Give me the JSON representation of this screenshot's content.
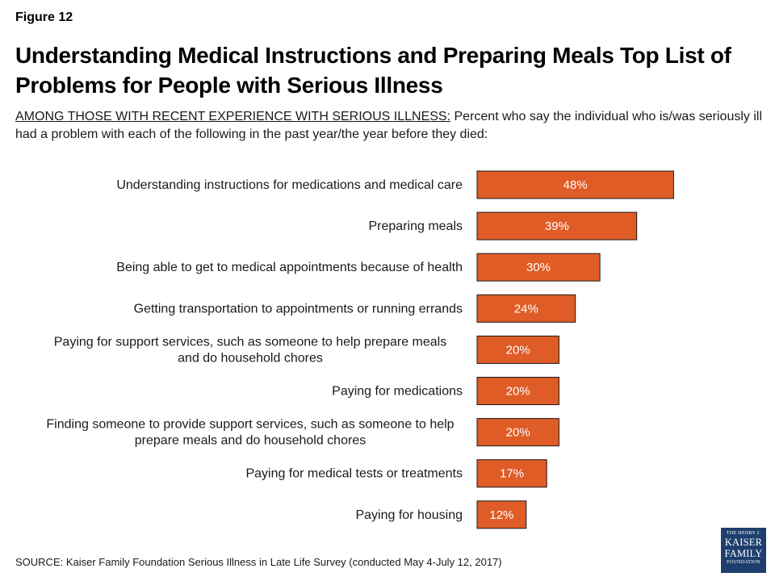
{
  "figure_label": "Figure 12",
  "title": "Understanding Medical Instructions and Preparing Meals Top List of Problems for People with Serious Illness",
  "subtitle_lead": "AMONG THOSE WITH RECENT EXPERIENCE WITH SERIOUS ILLNESS:",
  "subtitle_rest": " Percent who say the individual who is/was seriously ill had a problem with each of the following in the past year/the year before they died:",
  "source": "SOURCE: Kaiser Family Foundation Serious Illness in Late Life Survey (conducted May 4-July 12, 2017)",
  "logo": {
    "line1": "THE HENRY J.",
    "line2": "KAISER",
    "line3": "FAMILY",
    "line4": "FOUNDATION"
  },
  "colors": {
    "bar": "#e05c27",
    "bar_border": "#1a1a1a",
    "logo_bg": "#1e3f6e"
  },
  "chart_data": {
    "type": "bar",
    "orientation": "horizontal",
    "categories": [
      "Understanding instructions for medications and medical care",
      "Preparing meals",
      "Being able to get to medical appointments because of health",
      "Getting transportation to appointments or running errands",
      "Paying for support services, such as someone to help prepare meals and do household chores",
      "Paying for medications",
      "Finding someone to provide support services, such as someone to help prepare meals and do household chores",
      "Paying for medical tests or treatments",
      "Paying for housing"
    ],
    "category_lines": [
      [
        "Understanding instructions for medications and medical care"
      ],
      [
        "Preparing meals"
      ],
      [
        "Being able to get to medical appointments because of health"
      ],
      [
        "Getting transportation to appointments or running errands"
      ],
      [
        "Paying for support services, such as someone to help prepare meals",
        "and do household chores"
      ],
      [
        "Paying for medications"
      ],
      [
        "Finding someone to provide support services, such as someone to help",
        "prepare meals and do household chores"
      ],
      [
        "Paying for medical tests or treatments"
      ],
      [
        "Paying for housing"
      ]
    ],
    "values": [
      48,
      39,
      30,
      24,
      20,
      20,
      20,
      17,
      12
    ],
    "data_labels": [
      "48%",
      "39%",
      "30%",
      "24%",
      "20%",
      "20%",
      "20%",
      "17%",
      "12%"
    ],
    "unit": "%",
    "xlim": [
      0,
      100
    ],
    "grid": false,
    "legend": "none"
  }
}
